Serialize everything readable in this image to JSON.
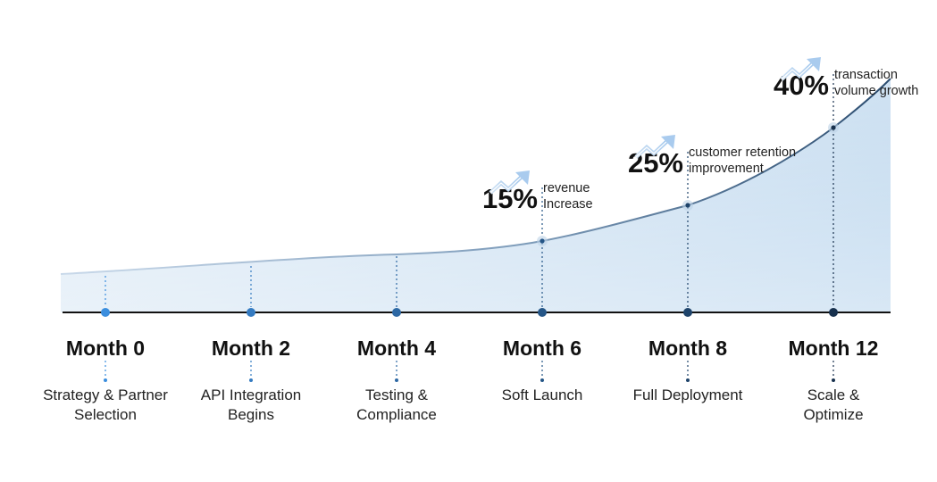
{
  "colors": {
    "axis": "#111111",
    "curve_start": "#b8cde3",
    "curve_end": "#2b4c6f",
    "area_top": "#a9cbe9",
    "marker_start": "#3b8ede",
    "marker_end": "#17304d",
    "arrow": "#a9cbee"
  },
  "milestones": [
    {
      "month": "Month 0",
      "phase_lines": [
        "Strategy & Partner",
        "Selection"
      ]
    },
    {
      "month": "Month 2",
      "phase_lines": [
        "API Integration",
        "Begins"
      ]
    },
    {
      "month": "Month 4",
      "phase_lines": [
        "Testing &",
        "Compliance"
      ]
    },
    {
      "month": "Month 6",
      "phase_lines": [
        "Soft Launch"
      ]
    },
    {
      "month": "Month 8",
      "phase_lines": [
        "Full Deployment"
      ]
    },
    {
      "month": "Month 12",
      "phase_lines": [
        "Scale &",
        "Optimize"
      ]
    }
  ],
  "callouts": [
    {
      "milestone_index": 3,
      "value": "15%",
      "desc_lines": [
        "revenue",
        "Increase"
      ],
      "icon": "trend-up-icon"
    },
    {
      "milestone_index": 4,
      "value": "25%",
      "desc_lines": [
        "customer retention",
        "improvement"
      ],
      "icon": "trend-up-icon"
    },
    {
      "milestone_index": 5,
      "value": "40%",
      "desc_lines": [
        "transaction",
        "volume growth"
      ],
      "icon": "trend-up-icon"
    }
  ]
}
